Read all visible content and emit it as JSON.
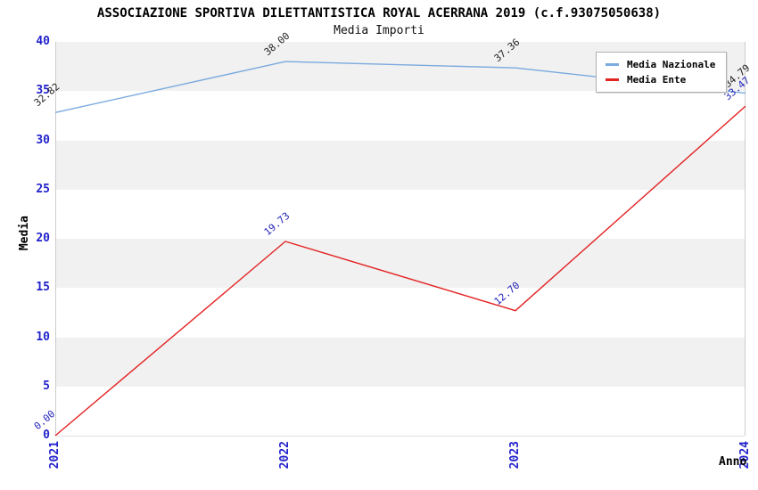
{
  "title": "ASSOCIAZIONE SPORTIVA DILETTANTISTICA ROYAL ACERRANA 2019 (c.f.93075050638)",
  "subtitle": "Media Importi",
  "chart_data": {
    "type": "line",
    "x": [
      "2021",
      "2022",
      "2023",
      "2024"
    ],
    "series": [
      {
        "name": "Media Nazionale",
        "values": [
          32.82,
          38.0,
          37.36,
          34.79
        ],
        "point_labels": [
          "32.82",
          "38.00",
          "37.36",
          "34.79"
        ],
        "color": "#7aaade",
        "label_color": "#222222"
      },
      {
        "name": "Media Ente",
        "values": [
          0.0,
          19.73,
          12.7,
          33.47
        ],
        "point_labels": [
          "0.00",
          "19.73",
          "12.70",
          "33.47"
        ],
        "color": "#e32222",
        "label_color": "#2222bb"
      }
    ],
    "xlabel": "Anno",
    "ylabel": "Media",
    "ylim": [
      0,
      40
    ],
    "yticks": [
      0,
      5,
      10,
      15,
      20,
      25,
      30,
      35,
      40
    ],
    "grid": "horizontal-bands",
    "legend_position": "top-right",
    "colors": {
      "tick_label": "#2222cc",
      "band_gray": "#f1f1f1",
      "band_white": "#ffffff",
      "band_line": "#e0e0e0",
      "plot_border": "#cccccc"
    }
  }
}
